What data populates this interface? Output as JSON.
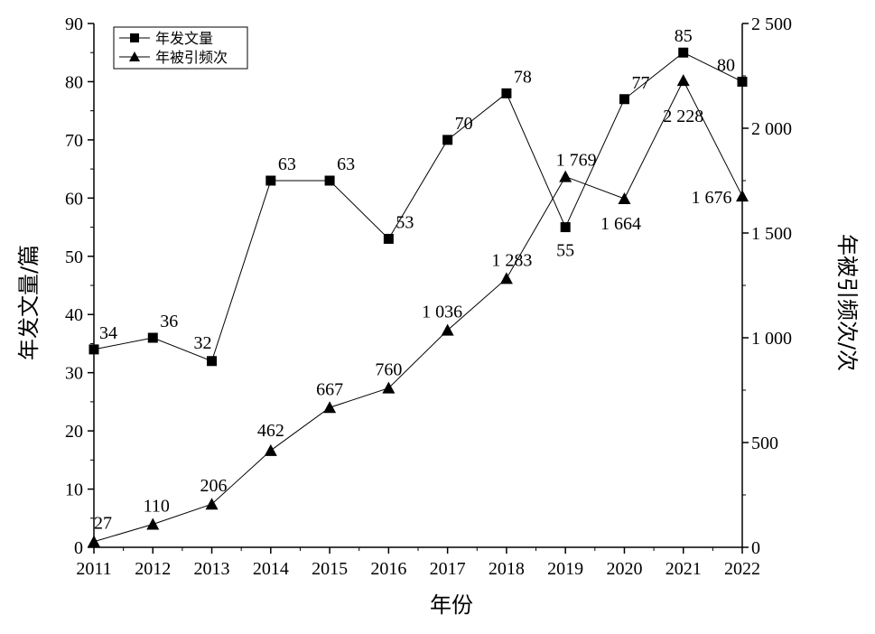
{
  "chart_data": {
    "type": "line",
    "categories": [
      "2011",
      "2012",
      "2013",
      "2014",
      "2015",
      "2016",
      "2017",
      "2018",
      "2019",
      "2020",
      "2021",
      "2022"
    ],
    "xlabel": "年份",
    "ylabel_left": "年发文量/篇",
    "ylabel_right": "年被引频次/次",
    "ylim_left": [
      0,
      90
    ],
    "ylim_right": [
      0,
      2500
    ],
    "yticks_left": [
      "0",
      "10",
      "20",
      "30",
      "40",
      "50",
      "60",
      "70",
      "80",
      "90"
    ],
    "yticks_right": [
      "0",
      "500",
      "1 000",
      "1 500",
      "2 000",
      "2 500"
    ],
    "grid": false,
    "legend_position": "top-left",
    "series": [
      {
        "name": "年发文量",
        "axis": "left",
        "marker": "square",
        "values": [
          34,
          36,
          32,
          63,
          63,
          53,
          70,
          78,
          55,
          77,
          85,
          80
        ],
        "labels": [
          "34",
          "36",
          "32",
          "63",
          "63",
          "53",
          "70",
          "78",
          "55",
          "77",
          "85",
          "80"
        ]
      },
      {
        "name": "年被引频次",
        "axis": "right",
        "marker": "triangle",
        "values": [
          27,
          110,
          206,
          462,
          667,
          760,
          1036,
          1283,
          1769,
          1664,
          2228,
          1676
        ],
        "labels": [
          "27",
          "110",
          "206",
          "462",
          "667",
          "760",
          "1 036",
          "1 283",
          "1 769",
          "1 664",
          "2 228",
          "1 676"
        ]
      }
    ]
  }
}
